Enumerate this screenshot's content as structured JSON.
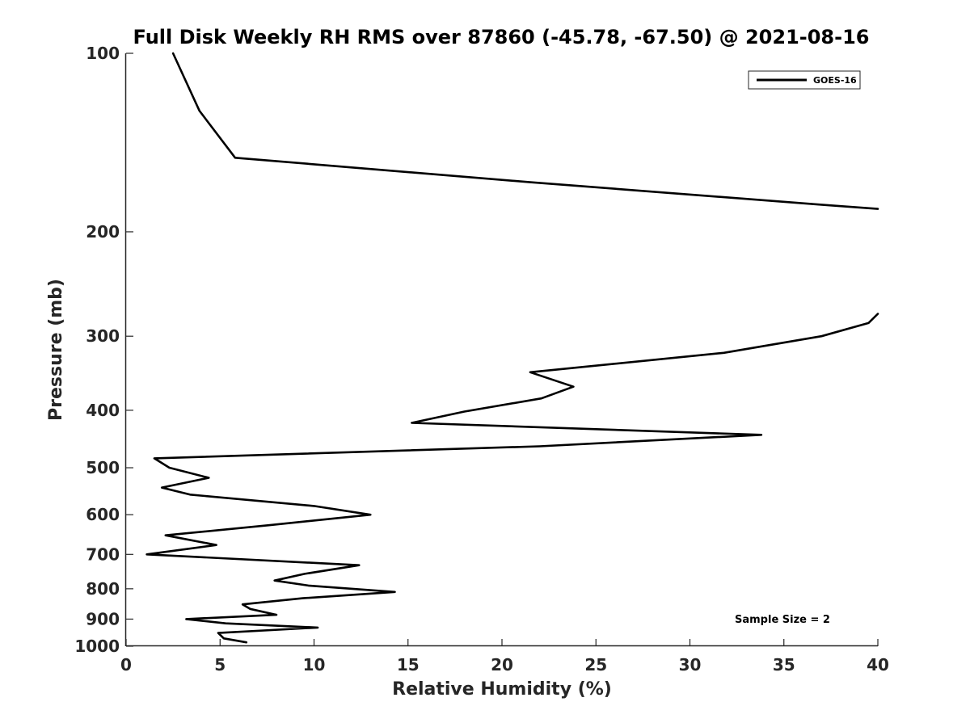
{
  "chart_data": {
    "type": "line",
    "title": "Full Disk Weekly RH RMS over 87860 (-45.78, -67.50) @ 2021-08-16",
    "xlabel": "Relative Humidity (%)",
    "ylabel": "Pressure (mb)",
    "xlim": [
      0,
      40
    ],
    "ylim": [
      100,
      1000
    ],
    "y_scale": "log",
    "y_reversed": true,
    "grid": false,
    "legend_position": "top-right",
    "x_ticks": [
      0,
      5,
      10,
      15,
      20,
      25,
      30,
      35,
      40
    ],
    "y_ticks": [
      100,
      200,
      300,
      400,
      500,
      600,
      700,
      800,
      900,
      1000
    ],
    "annotation": "Sample Size = 2",
    "series": [
      {
        "name": "GOES-16",
        "color": "#000000",
        "segments": [
          {
            "x": [
              2.5,
              3.9,
              5.8,
              21.5,
              37.0,
              40.0
            ],
            "y": [
              100,
              125,
              150,
              165,
              180,
              183
            ]
          },
          {
            "x": [
              40.0,
              39.5,
              37.0,
              31.8,
              21.5,
              23.8,
              22.1,
              18.0,
              15.2,
              33.8,
              22.0,
              1.5,
              2.3,
              4.4,
              1.9,
              3.4,
              10.0,
              13.0,
              7.6,
              2.1,
              4.8,
              1.1,
              12.4,
              9.5,
              7.9,
              9.7,
              14.3,
              9.4,
              6.2,
              6.6,
              8.0,
              3.2,
              5.3,
              10.2,
              4.9,
              5.2,
              6.4
            ],
            "y": [
              275,
              285,
              300,
              320,
              345,
              365,
              382,
              402,
              420,
              440,
              460,
              482,
              500,
              520,
              540,
              555,
              580,
              600,
              625,
              650,
              675,
              700,
              730,
              755,
              775,
              790,
              810,
              830,
              850,
              865,
              885,
              900,
              915,
              930,
              950,
              970,
              985
            ]
          }
        ]
      }
    ]
  }
}
